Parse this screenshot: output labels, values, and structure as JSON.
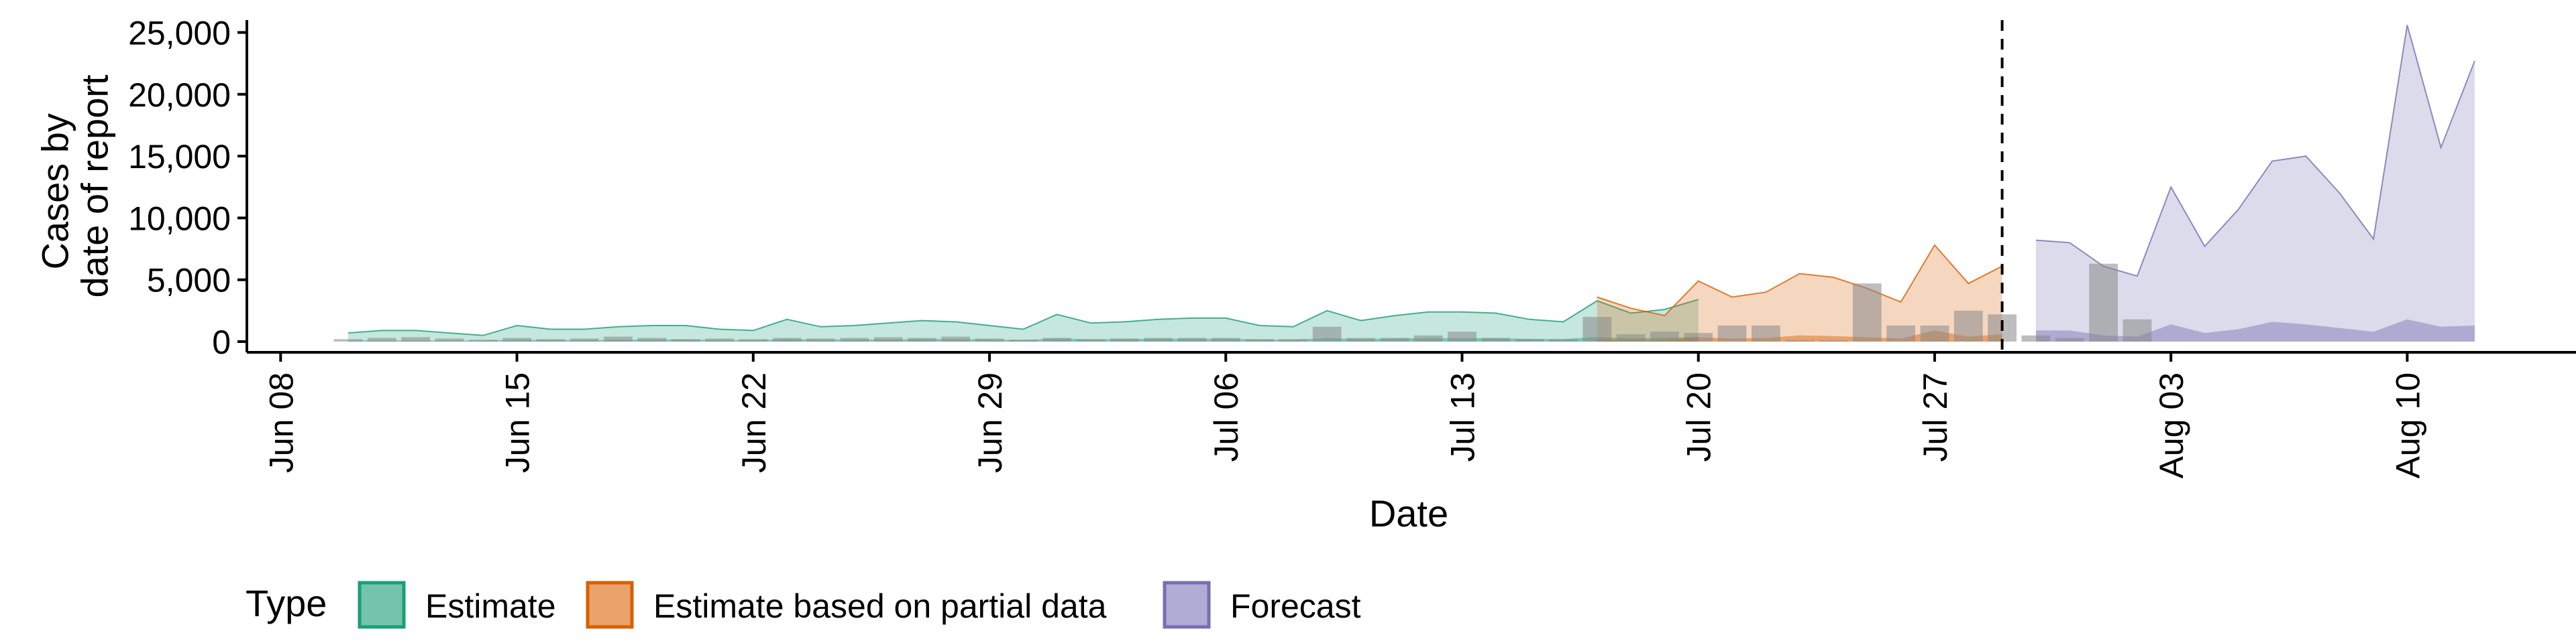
{
  "chart_data": {
    "type": "area",
    "title": "",
    "xlabel": "Date",
    "ylabel": [
      "Cases by",
      "date of report"
    ],
    "ylim": [
      0,
      26000
    ],
    "xlim": [
      "2020-06-07",
      "2020-08-15"
    ],
    "x_ticks": [
      "2020-06-08",
      "2020-06-15",
      "2020-06-22",
      "2020-06-29",
      "2020-07-06",
      "2020-07-13",
      "2020-07-20",
      "2020-07-27",
      "2020-08-03",
      "2020-08-10"
    ],
    "x_tick_labels": [
      "Jun 08",
      "Jun 15",
      "Jun 22",
      "Jun 29",
      "Jul 06",
      "Jul 13",
      "Jul 20",
      "Jul 27",
      "Aug 03",
      "Aug 10"
    ],
    "y_ticks": [
      0,
      5000,
      10000,
      15000,
      20000,
      25000
    ],
    "y_tick_labels": [
      "0",
      "5,000",
      "10,000",
      "15,000",
      "20,000",
      "25,000"
    ],
    "forecast_line_date": "2020-07-29",
    "grid": false,
    "legend": {
      "title": "Type",
      "position": "bottom",
      "entries": [
        {
          "label": "Estimate",
          "fill": "#73c4aa",
          "stroke": "#1b9e77"
        },
        {
          "label": "Estimate based on partial data",
          "fill": "#eaa36a",
          "stroke": "#d95f02"
        },
        {
          "label": "Forecast",
          "fill": "#b0acd6",
          "stroke": "#7570b3"
        }
      ]
    },
    "series": [
      {
        "name": "Estimate",
        "fill": "#1b9e77",
        "stroke": "#1b9e77",
        "start": "2020-06-10",
        "upper": [
          700,
          900,
          900,
          700,
          500,
          1300,
          1000,
          1000,
          1200,
          1300,
          1300,
          1000,
          900,
          1800,
          1200,
          1300,
          1500,
          1700,
          1600,
          1300,
          1000,
          2200,
          1500,
          1600,
          1800,
          1900,
          1900,
          1300,
          1200,
          2500,
          1700,
          2100,
          2400,
          2400,
          2300,
          1800,
          1600,
          3300,
          2300,
          2600,
          3400
        ],
        "lower": [
          100,
          100,
          100,
          100,
          80,
          150,
          120,
          120,
          150,
          160,
          160,
          130,
          110,
          200,
          150,
          160,
          180,
          200,
          200,
          160,
          130,
          250,
          180,
          200,
          220,
          230,
          230,
          160,
          150,
          280,
          200,
          250,
          280,
          280,
          270,
          220,
          200,
          380,
          270,
          300,
          380
        ]
      },
      {
        "name": "Estimate based on partial data",
        "fill": "#d95f02",
        "stroke": "#d95f02",
        "start": "2020-07-17",
        "upper": [
          3600,
          2700,
          2100,
          4900,
          3600,
          4000,
          5500,
          5200,
          4300,
          3200,
          7800,
          4700,
          6100
        ],
        "lower": [
          150,
          100,
          100,
          350,
          250,
          300,
          500,
          450,
          350,
          250,
          900,
          400,
          600
        ]
      },
      {
        "name": "Forecast",
        "fill": "#7570b3",
        "stroke": "#7570b3",
        "start": "2020-07-30",
        "upper": [
          8200,
          8000,
          6100,
          5300,
          12500,
          7700,
          10700,
          14600,
          15000,
          12000,
          8300,
          25600,
          15700,
          22700
        ],
        "lower": [
          900,
          900,
          500,
          400,
          1400,
          700,
          1000,
          1600,
          1400,
          1100,
          800,
          1800,
          1200,
          1300
        ]
      }
    ],
    "reported_cases": {
      "start": "2020-06-10",
      "color": "#888888",
      "values": [
        200,
        300,
        350,
        250,
        150,
        300,
        200,
        250,
        400,
        300,
        200,
        250,
        200,
        300,
        250,
        300,
        350,
        300,
        400,
        250,
        150,
        300,
        200,
        250,
        300,
        300,
        300,
        200,
        200,
        1200,
        300,
        300,
        500,
        800,
        300,
        200,
        200,
        2000,
        600,
        800,
        700,
        1300,
        1300,
        100,
        100,
        4700,
        1300,
        1300,
        2500,
        2200,
        500,
        300,
        6300,
        1800
      ]
    }
  }
}
